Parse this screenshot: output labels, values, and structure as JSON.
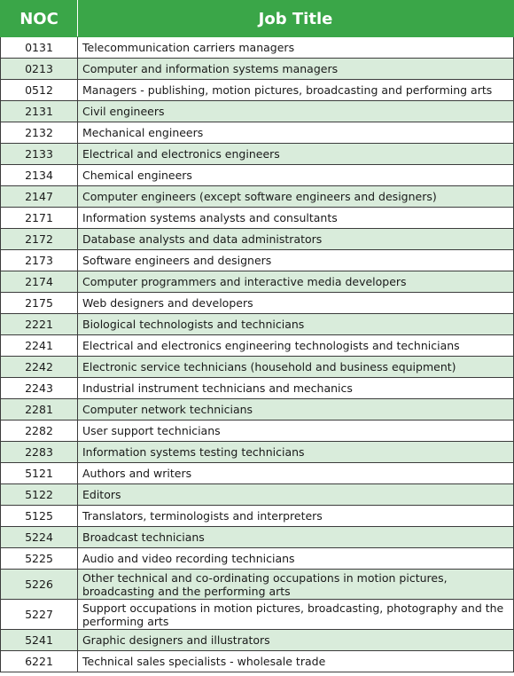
{
  "headers": {
    "noc": "NOC",
    "title": "Job Title"
  },
  "rows": [
    {
      "noc": "0131",
      "title": "Telecommunication carriers managers"
    },
    {
      "noc": "0213",
      "title": "Computer and information systems managers"
    },
    {
      "noc": "0512",
      "title": "Managers - publishing, motion pictures, broadcasting and performing arts"
    },
    {
      "noc": "2131",
      "title": "Civil engineers"
    },
    {
      "noc": "2132",
      "title": "Mechanical engineers"
    },
    {
      "noc": "2133",
      "title": "Electrical and electronics engineers"
    },
    {
      "noc": "2134",
      "title": "Chemical engineers"
    },
    {
      "noc": "2147",
      "title": "Computer engineers (except software engineers and designers)"
    },
    {
      "noc": "2171",
      "title": "Information systems analysts and consultants"
    },
    {
      "noc": "2172",
      "title": "Database analysts and data administrators"
    },
    {
      "noc": "2173",
      "title": "Software engineers and designers"
    },
    {
      "noc": "2174",
      "title": "Computer programmers and interactive media developers"
    },
    {
      "noc": "2175",
      "title": "Web designers and developers"
    },
    {
      "noc": "2221",
      "title": "Biological technologists and technicians"
    },
    {
      "noc": "2241",
      "title": "Electrical and electronics engineering technologists and technicians"
    },
    {
      "noc": "2242",
      "title": "Electronic service technicians (household and business equipment)"
    },
    {
      "noc": "2243",
      "title": "Industrial instrument technicians and mechanics"
    },
    {
      "noc": "2281",
      "title": "Computer network technicians"
    },
    {
      "noc": "2282",
      "title": "User support technicians"
    },
    {
      "noc": "2283",
      "title": "Information systems testing technicians"
    },
    {
      "noc": "5121",
      "title": "Authors and writers"
    },
    {
      "noc": "5122",
      "title": "Editors"
    },
    {
      "noc": "5125",
      "title": "Translators, terminologists and interpreters"
    },
    {
      "noc": "5224",
      "title": "Broadcast technicians"
    },
    {
      "noc": "5225",
      "title": "Audio and video recording technicians"
    },
    {
      "noc": "5226",
      "title": "Other technical and co-ordinating occupations in motion pictures, broadcasting and the performing arts"
    },
    {
      "noc": "5227",
      "title": "Support occupations in motion pictures, broadcasting, photography and the performing arts"
    },
    {
      "noc": "5241",
      "title": "Graphic designers and illustrators"
    },
    {
      "noc": "6221",
      "title": "Technical sales specialists - wholesale trade"
    }
  ],
  "colors": {
    "header_bg": "#3aa648",
    "header_text": "#ffffff",
    "shaded_row": "#d9ecdb",
    "plain_row": "#ffffff",
    "border": "#3c3c3c"
  }
}
